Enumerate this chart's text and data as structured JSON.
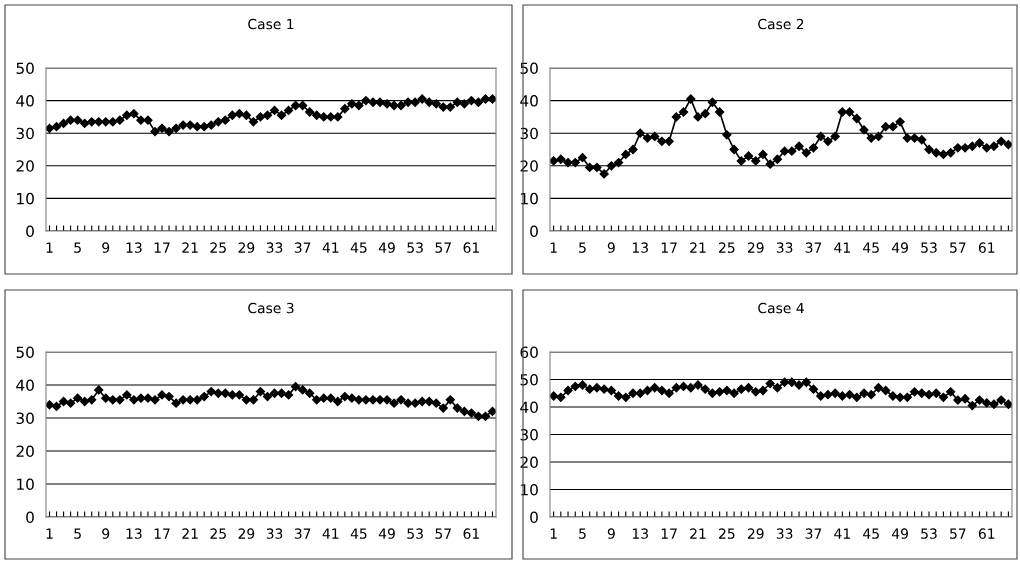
{
  "chart_data": [
    {
      "type": "line",
      "title": "Case 1",
      "categories": [
        "1",
        null,
        null,
        null,
        "5",
        null,
        null,
        null,
        "9",
        null,
        null,
        null,
        "13",
        null,
        null,
        null,
        "17",
        null,
        null,
        null,
        "21",
        null,
        null,
        null,
        "25",
        null,
        null,
        null,
        "29",
        null,
        null,
        null,
        "33",
        null,
        null,
        null,
        "37",
        null,
        null,
        null,
        "41",
        null,
        null,
        null,
        "45",
        null,
        null,
        null,
        "49",
        null,
        null,
        null,
        "53",
        null,
        null,
        null,
        "57",
        null,
        null,
        null,
        "61",
        null,
        null,
        null
      ],
      "series": [
        {
          "color": "#000000",
          "values": [
            31.5,
            32,
            33,
            34,
            34,
            33,
            33.5,
            33.5,
            33.5,
            33.5,
            34,
            35.5,
            36,
            34,
            34,
            30.5,
            31.5,
            30.5,
            31.5,
            32.5,
            32.5,
            32,
            32,
            32.5,
            33.5,
            34,
            35.5,
            36,
            35.5,
            33.5,
            35,
            35.5,
            37,
            35.5,
            37,
            38.5,
            38.5,
            36.5,
            35.5,
            35,
            35,
            35,
            37.5,
            39,
            38.5,
            40,
            39.5,
            39.5,
            39,
            38.5,
            38.5,
            39.5,
            39.5,
            40.5,
            39.5,
            39,
            38,
            38,
            39.5,
            39,
            40,
            39.5,
            40.5,
            40.5
          ]
        }
      ],
      "ylim": [
        0,
        50
      ],
      "yticks": [
        0,
        10,
        20,
        30,
        40,
        50
      ],
      "grid": "y",
      "marker": "diamond",
      "line_style": "solid"
    },
    {
      "type": "line",
      "title": "Case 2",
      "categories": [
        "1",
        null,
        null,
        null,
        "5",
        null,
        null,
        null,
        "9",
        null,
        null,
        null,
        "13",
        null,
        null,
        null,
        "17",
        null,
        null,
        null,
        "21",
        null,
        null,
        null,
        "25",
        null,
        null,
        null,
        "29",
        null,
        null,
        null,
        "33",
        null,
        null,
        null,
        "37",
        null,
        null,
        null,
        "41",
        null,
        null,
        null,
        "45",
        null,
        null,
        null,
        "49",
        null,
        null,
        null,
        "53",
        null,
        null,
        null,
        "57",
        null,
        null,
        null,
        "61",
        null,
        null,
        null
      ],
      "series": [
        {
          "color": "#000000",
          "values": [
            21.5,
            22,
            21,
            21,
            22.5,
            19.5,
            19.5,
            17.5,
            20,
            21,
            23.5,
            25,
            30,
            28.5,
            29,
            27.5,
            27.5,
            35,
            36.5,
            40.5,
            35,
            36,
            39.5,
            36.5,
            29.5,
            25,
            21.5,
            23,
            21.5,
            23.5,
            20.5,
            22,
            24.5,
            24.5,
            26,
            24,
            25.5,
            29,
            27.5,
            29,
            36.5,
            36.5,
            34.5,
            31,
            28.5,
            29,
            32,
            32,
            33.5,
            28.5,
            28.5,
            28,
            25,
            24,
            23.5,
            24,
            25.5,
            25.5,
            26,
            27,
            25.5,
            26,
            27.5,
            26.5
          ]
        }
      ],
      "ylim": [
        0,
        50
      ],
      "yticks": [
        0,
        10,
        20,
        30,
        40,
        50
      ],
      "grid": "y",
      "marker": "diamond",
      "line_style": "solid"
    },
    {
      "type": "line",
      "title": "Case 3",
      "categories": [
        "1",
        null,
        null,
        null,
        "5",
        null,
        null,
        null,
        "9",
        null,
        null,
        null,
        "13",
        null,
        null,
        null,
        "17",
        null,
        null,
        null,
        "21",
        null,
        null,
        null,
        "25",
        null,
        null,
        null,
        "29",
        null,
        null,
        null,
        "33",
        null,
        null,
        null,
        "37",
        null,
        null,
        null,
        "41",
        null,
        null,
        null,
        "45",
        null,
        null,
        null,
        "49",
        null,
        null,
        null,
        "53",
        null,
        null,
        null,
        "57",
        null,
        null,
        null,
        "61",
        null,
        null,
        null
      ],
      "series": [
        {
          "color": "#000000",
          "values": [
            34,
            33.5,
            35,
            34.5,
            36,
            35,
            35.5,
            38.5,
            36,
            35.5,
            35.5,
            37,
            35.5,
            36,
            36,
            35.5,
            37,
            36.5,
            34.5,
            35.5,
            35.5,
            35.5,
            36.5,
            38,
            37.5,
            37.5,
            37,
            37,
            35.5,
            35.5,
            38,
            36.5,
            37.5,
            37.5,
            37,
            39.5,
            38.5,
            37.5,
            35.5,
            36,
            36,
            35,
            36.5,
            36,
            35.5,
            35.5,
            35.5,
            35.5,
            35.5,
            34.5,
            35.5,
            34.5,
            34.5,
            35,
            35,
            34.5,
            33,
            35.5,
            33,
            32,
            31.5,
            30.5,
            30.5,
            32
          ]
        }
      ],
      "ylim": [
        0,
        50
      ],
      "yticks": [
        0,
        10,
        20,
        30,
        40,
        50
      ],
      "grid": "y",
      "marker": "diamond",
      "line_style": "solid"
    },
    {
      "type": "line",
      "title": "Case 4",
      "categories": [
        "1",
        null,
        null,
        null,
        "5",
        null,
        null,
        null,
        "9",
        null,
        null,
        null,
        "13",
        null,
        null,
        null,
        "17",
        null,
        null,
        null,
        "21",
        null,
        null,
        null,
        "25",
        null,
        null,
        null,
        "29",
        null,
        null,
        null,
        "33",
        null,
        null,
        null,
        "37",
        null,
        null,
        null,
        "41",
        null,
        null,
        null,
        "45",
        null,
        null,
        null,
        "49",
        null,
        null,
        null,
        "53",
        null,
        null,
        null,
        "57",
        null,
        null,
        null,
        "61",
        null,
        null,
        null
      ],
      "series": [
        {
          "color": "#000000",
          "values": [
            44,
            43.5,
            46,
            47.5,
            48,
            46.5,
            47,
            46.5,
            46,
            44,
            43.5,
            45,
            45,
            46,
            47,
            46,
            45,
            47,
            47.5,
            47,
            48,
            46.5,
            45,
            45.5,
            46,
            45,
            46.5,
            47,
            45.5,
            46,
            48.5,
            47,
            49,
            49,
            48,
            49,
            46.5,
            44,
            44.5,
            45,
            44,
            44.5,
            43.5,
            45,
            44.5,
            47,
            46,
            44,
            43.5,
            43.5,
            45.5,
            45,
            44.5,
            45,
            43.5,
            45.5,
            42.5,
            43,
            40.5,
            42.5,
            41.5,
            41,
            42.5,
            41
          ]
        }
      ],
      "ylim": [
        0,
        60
      ],
      "yticks": [
        0,
        10,
        20,
        30,
        40,
        50,
        60
      ],
      "grid": "y",
      "marker": "diamond",
      "line_style": "solid"
    }
  ]
}
